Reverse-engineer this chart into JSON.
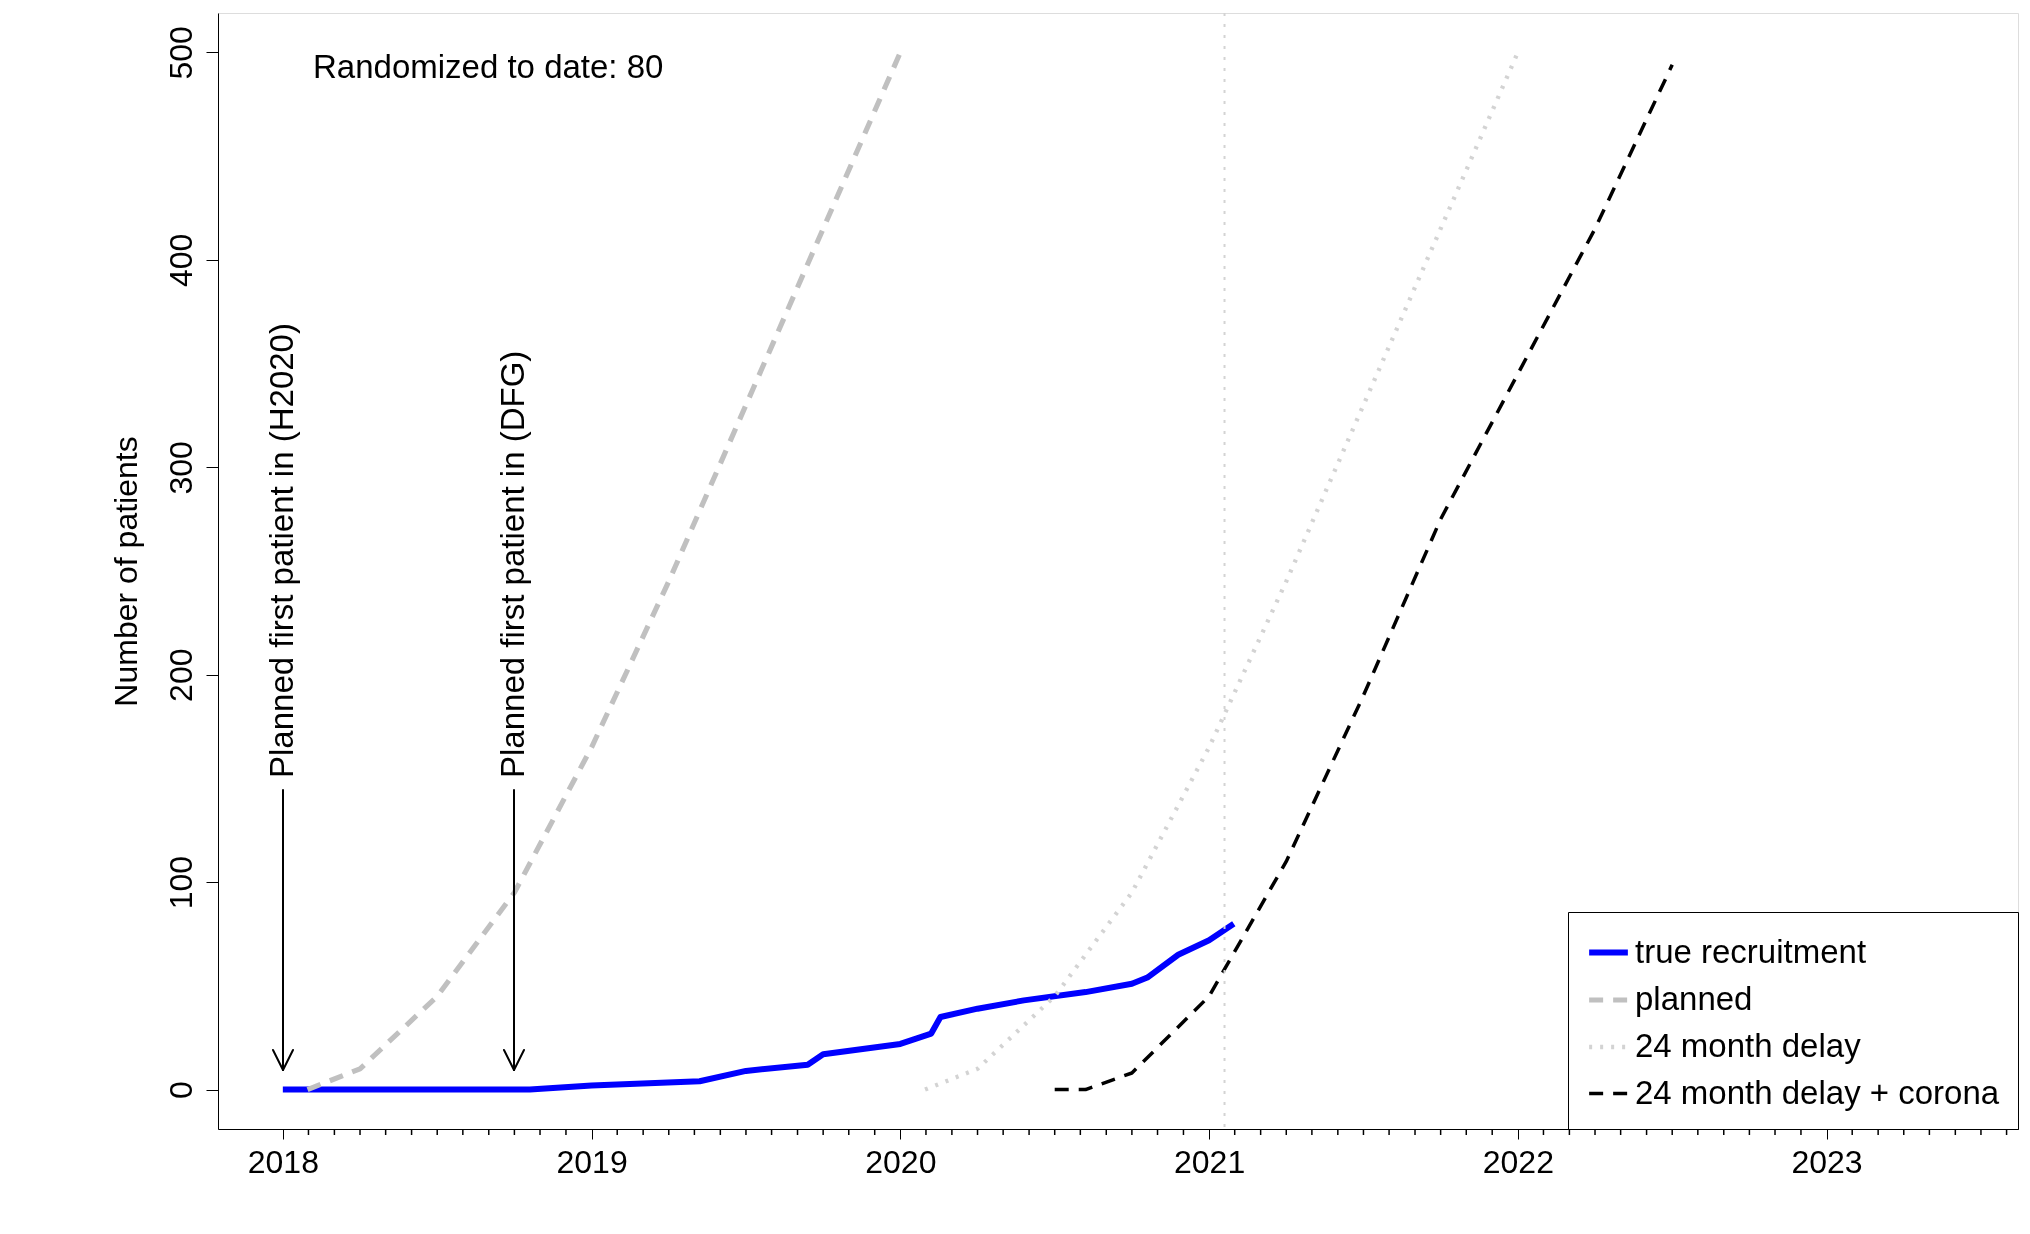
{
  "chart_data": {
    "type": "line",
    "ylabel": "Number of patients",
    "xlim": [
      2017.79,
      2023.62
    ],
    "ylim": [
      -19,
      519
    ],
    "xticks": [
      2018,
      {
        "value": 2018.083,
        "label": null
      },
      {
        "value": 2018.167,
        "label": null
      },
      {
        "value": 2018.25,
        "label": null
      },
      {
        "value": 2018.333,
        "label": null
      },
      {
        "value": 2018.417,
        "label": null
      },
      {
        "value": 2018.5,
        "label": null
      },
      {
        "value": 2018.583,
        "label": null
      },
      {
        "value": 2018.667,
        "label": null
      },
      {
        "value": 2018.75,
        "label": null
      },
      {
        "value": 2018.833,
        "label": null
      },
      {
        "value": 2018.917,
        "label": null
      },
      2019,
      {
        "value": 2019.083,
        "label": null
      },
      {
        "value": 2019.167,
        "label": null
      },
      {
        "value": 2019.25,
        "label": null
      },
      {
        "value": 2019.333,
        "label": null
      },
      {
        "value": 2019.417,
        "label": null
      },
      {
        "value": 2019.5,
        "label": null
      },
      {
        "value": 2019.583,
        "label": null
      },
      {
        "value": 2019.667,
        "label": null
      },
      {
        "value": 2019.75,
        "label": null
      },
      {
        "value": 2019.833,
        "label": null
      },
      {
        "value": 2019.917,
        "label": null
      },
      2020,
      {
        "value": 2020.083,
        "label": null
      },
      {
        "value": 2020.167,
        "label": null
      },
      {
        "value": 2020.25,
        "label": null
      },
      {
        "value": 2020.333,
        "label": null
      },
      {
        "value": 2020.417,
        "label": null
      },
      {
        "value": 2020.5,
        "label": null
      },
      {
        "value": 2020.583,
        "label": null
      },
      {
        "value": 2020.667,
        "label": null
      },
      {
        "value": 2020.75,
        "label": null
      },
      {
        "value": 2020.833,
        "label": null
      },
      {
        "value": 2020.917,
        "label": null
      },
      2021,
      {
        "value": 2021.083,
        "label": null
      },
      {
        "value": 2021.167,
        "label": null
      },
      {
        "value": 2021.25,
        "label": null
      },
      {
        "value": 2021.333,
        "label": null
      },
      {
        "value": 2021.417,
        "label": null
      },
      {
        "value": 2021.5,
        "label": null
      },
      {
        "value": 2021.583,
        "label": null
      },
      {
        "value": 2021.667,
        "label": null
      },
      {
        "value": 2021.75,
        "label": null
      },
      {
        "value": 2021.833,
        "label": null
      },
      {
        "value": 2021.917,
        "label": null
      },
      2022,
      {
        "value": 2022.083,
        "label": null
      },
      {
        "value": 2022.167,
        "label": null
      },
      {
        "value": 2022.25,
        "label": null
      },
      {
        "value": 2022.333,
        "label": null
      },
      {
        "value": 2022.417,
        "label": null
      },
      {
        "value": 2022.5,
        "label": null
      },
      {
        "value": 2022.583,
        "label": null
      },
      {
        "value": 2022.667,
        "label": null
      },
      {
        "value": 2022.75,
        "label": null
      },
      {
        "value": 2022.833,
        "label": null
      },
      {
        "value": 2022.917,
        "label": null
      },
      2023,
      {
        "value": 2023.083,
        "label": null
      },
      {
        "value": 2023.167,
        "label": null
      },
      {
        "value": 2023.25,
        "label": null
      },
      {
        "value": 2023.333,
        "label": null
      },
      {
        "value": 2023.417,
        "label": null
      },
      {
        "value": 2023.5,
        "label": null
      },
      {
        "value": 2023.583,
        "label": null
      }
    ],
    "yticks": [
      0,
      100,
      200,
      300,
      400,
      500
    ],
    "grid": false,
    "legend": "bottom right",
    "marker": "none",
    "series": [
      {
        "name": "true recruitment",
        "color": "#0000ff",
        "line_style": "solid",
        "x": [
          2018.0,
          2018.8,
          2018.9,
          2019.0,
          2019.35,
          2019.5,
          2019.7,
          2019.75,
          2020.0,
          2020.1,
          2020.13,
          2020.25,
          2020.4,
          2020.6,
          2020.75,
          2020.8,
          2020.9,
          2021.0,
          2021.08
        ],
        "values": [
          0,
          0,
          1,
          2,
          4,
          9,
          12,
          17,
          22,
          27,
          35,
          39,
          43,
          47,
          51,
          54,
          65,
          72,
          80
        ]
      },
      {
        "name": "planned",
        "color": "#c0c0c0",
        "line_style": "dashed",
        "x": [
          2018.08,
          2018.25,
          2018.5,
          2018.75,
          2019.0,
          2019.25,
          2019.5,
          2019.75,
          2020.0
        ],
        "values": [
          0,
          10,
          45,
          95,
          165,
          245,
          330,
          415,
          500
        ]
      },
      {
        "name": "24 month delay",
        "color": "#d3d3d3",
        "line_style": "dotted",
        "x": [
          2020.08,
          2020.25,
          2020.5,
          2020.75,
          2021.0,
          2021.25,
          2021.5,
          2021.75,
          2022.0
        ],
        "values": [
          0,
          10,
          45,
          95,
          165,
          245,
          330,
          415,
          500
        ]
      },
      {
        "name": "24 month delay + corona",
        "color": "#000000",
        "line_style": "dashed",
        "x": [
          2020.5,
          2020.6,
          2020.75,
          2021.0,
          2021.25,
          2021.5,
          2021.75,
          2022.0,
          2022.25,
          2022.5
        ],
        "values": [
          0,
          0,
          8,
          45,
          110,
          190,
          275,
          345,
          415,
          494
        ]
      }
    ],
    "ref_lines": [
      {
        "axis": "x",
        "value": 2021.05,
        "color": "#d3d3d3",
        "line_style": "dotted"
      }
    ],
    "annotations": [
      "Randomized to date: 80",
      "Planned first patient in (H2020)",
      "Planned first patient in (DFG)"
    ]
  }
}
